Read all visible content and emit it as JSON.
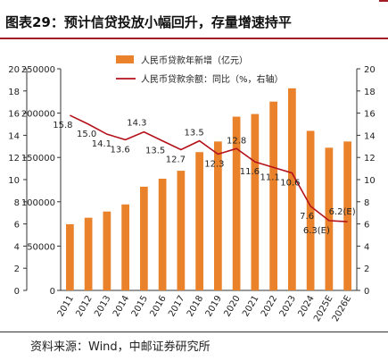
{
  "title": "图表29：预计信贷投放小幅回升，存量增速持平",
  "source": "资料来源：Wind，中邮证券研究所",
  "colors": {
    "accent": "#a31d24",
    "bar": "#e9822a",
    "line": "#b4121b",
    "axis": "#333333"
  },
  "chart_data": {
    "type": "bar",
    "categories": [
      "2011",
      "2012",
      "2013",
      "2014",
      "2015",
      "2016",
      "2017",
      "2018",
      "2019",
      "2020",
      "2021",
      "2022",
      "2023",
      "2024",
      "2025E",
      "2026E"
    ],
    "series": [
      {
        "name": "人民币贷款年新增（亿元）",
        "type": "bar",
        "axis": "left",
        "values": [
          74700,
          82000,
          89000,
          97000,
          117000,
          126000,
          135000,
          156000,
          168000,
          196000,
          199000,
          213000,
          228000,
          180000,
          161000,
          168000
        ]
      },
      {
        "name": "人民币贷款余额：同比（%，右轴）",
        "type": "line",
        "axis": "right",
        "values": [
          15.8,
          15.0,
          14.1,
          13.6,
          14.3,
          13.5,
          12.7,
          13.5,
          12.3,
          12.8,
          11.6,
          11.1,
          10.6,
          7.6,
          6.3,
          6.2
        ],
        "labels": [
          "15.8",
          "15.0",
          "14.1",
          "13.6",
          "14.3",
          "13.5",
          "12.7",
          "13.5",
          "12.3",
          "12.8",
          "11.6",
          "11.1",
          "10.6",
          "7.6",
          "6.3(E)",
          "6.2(E)"
        ]
      }
    ],
    "left_axis": {
      "min": 0,
      "max": 250000,
      "ticks": [
        "0",
        "50000",
        "100000",
        "150000",
        "200000",
        "250000"
      ]
    },
    "right_axis": {
      "min": 0,
      "max": 20,
      "ticks": [
        "0",
        "2",
        "4",
        "6",
        "8",
        "10",
        "12",
        "14",
        "16",
        "18",
        "20"
      ]
    },
    "outer_left_axis": {
      "min": 0,
      "max": 20,
      "ticks": [
        "0",
        "2",
        "4",
        "6",
        "8",
        "10",
        "12",
        "14",
        "16",
        "18",
        "20"
      ]
    },
    "legend_position": "top-center"
  }
}
